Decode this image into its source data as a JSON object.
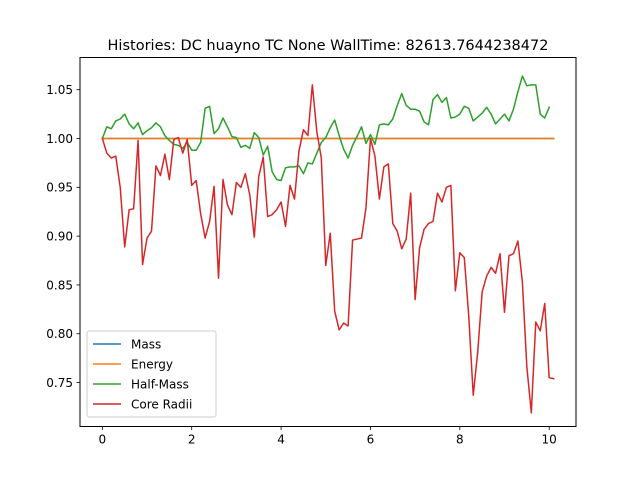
{
  "chart_data": {
    "type": "line",
    "title": "Histories: DC huayno TC None WallTime: 82613.7644238472",
    "xlabel": "",
    "ylabel": "",
    "xlim": [
      -0.5,
      10.6
    ],
    "ylim": [
      0.705,
      1.083
    ],
    "xticks": [
      0,
      2,
      4,
      6,
      8,
      10
    ],
    "xtick_labels": [
      "0",
      "2",
      "4",
      "6",
      "8",
      "10"
    ],
    "yticks": [
      0.75,
      0.8,
      0.85,
      0.9,
      0.95,
      1.0,
      1.05
    ],
    "ytick_labels": [
      "0.75",
      "0.80",
      "0.85",
      "0.90",
      "0.95",
      "1.00",
      "1.05"
    ],
    "grid": false,
    "legend_position": "lower-left",
    "x_start": 0,
    "x_step": 0.1,
    "series": [
      {
        "name": "Mass",
        "color": "#1f77b4",
        "values": [
          1.0,
          1.0,
          1.0,
          1.0,
          1.0,
          1.0,
          1.0,
          1.0,
          1.0,
          1.0,
          1.0,
          1.0,
          1.0,
          1.0,
          1.0,
          1.0,
          1.0,
          1.0,
          1.0,
          1.0,
          1.0,
          1.0,
          1.0,
          1.0,
          1.0,
          1.0,
          1.0,
          1.0,
          1.0,
          1.0,
          1.0,
          1.0,
          1.0,
          1.0,
          1.0,
          1.0,
          1.0,
          1.0,
          1.0,
          1.0,
          1.0,
          1.0,
          1.0,
          1.0,
          1.0,
          1.0,
          1.0,
          1.0,
          1.0,
          1.0,
          1.0,
          1.0,
          1.0,
          1.0,
          1.0,
          1.0,
          1.0,
          1.0,
          1.0,
          1.0,
          1.0,
          1.0,
          1.0,
          1.0,
          1.0,
          1.0,
          1.0,
          1.0,
          1.0,
          1.0,
          1.0,
          1.0,
          1.0,
          1.0,
          1.0,
          1.0,
          1.0,
          1.0,
          1.0,
          1.0,
          1.0,
          1.0,
          1.0,
          1.0,
          1.0,
          1.0,
          1.0,
          1.0,
          1.0,
          1.0,
          1.0,
          1.0,
          1.0,
          1.0,
          1.0,
          1.0,
          1.0,
          1.0,
          1.0,
          1.0,
          1.0,
          1.0
        ]
      },
      {
        "name": "Energy",
        "color": "#ff7f0e",
        "values": [
          1.0,
          1.0,
          1.0,
          1.0,
          1.0,
          1.0,
          1.0,
          1.0,
          1.0,
          1.0,
          1.0,
          1.0,
          1.0,
          1.0,
          1.0,
          1.0,
          1.0,
          1.0,
          1.0,
          1.0,
          1.0,
          1.0,
          1.0,
          1.0,
          1.0,
          1.0,
          1.0,
          1.0,
          1.0,
          1.0,
          1.0,
          1.0,
          1.0,
          1.0,
          1.0,
          1.0,
          1.0,
          1.0,
          1.0,
          1.0,
          1.0,
          1.0,
          1.0,
          1.0,
          1.0,
          1.0,
          1.0,
          1.0,
          1.0,
          1.0,
          1.0,
          1.0,
          1.0,
          1.0,
          1.0,
          1.0,
          1.0,
          1.0,
          1.0,
          1.0,
          1.0,
          1.0,
          1.0,
          1.0,
          1.0,
          1.0,
          1.0,
          1.0,
          1.0,
          1.0,
          1.0,
          1.0,
          1.0,
          1.0,
          1.0,
          1.0,
          1.0,
          1.0,
          1.0,
          1.0,
          1.0,
          1.0,
          1.0,
          1.0,
          1.0,
          1.0,
          1.0,
          1.0,
          1.0,
          1.0,
          1.0,
          1.0,
          1.0,
          1.0,
          1.0,
          1.0,
          1.0,
          1.0,
          1.0,
          1.0,
          1.0,
          1.0
        ]
      },
      {
        "name": "Half-Mass",
        "color": "#2ca02c",
        "values": [
          1.0,
          1.012,
          1.01,
          1.018,
          1.02,
          1.025,
          1.015,
          1.01,
          1.016,
          1.004,
          1.008,
          1.011,
          1.016,
          1.012,
          1.003,
          0.998,
          0.994,
          0.993,
          0.99,
          0.996,
          0.988,
          0.988,
          0.996,
          1.031,
          1.033,
          1.005,
          1.01,
          1.021,
          1.012,
          1.002,
          1.001,
          0.991,
          0.993,
          0.99,
          1.006,
          1.001,
          0.983,
          0.992,
          0.966,
          0.958,
          0.957,
          0.97,
          0.971,
          0.971,
          0.972,
          0.964,
          0.975,
          0.974,
          0.985,
          0.996,
          1.001,
          1.011,
          1.019,
          1.003,
          0.989,
          0.98,
          0.993,
          1.002,
          1.012,
          0.995,
          1.004,
          0.994,
          1.014,
          1.015,
          1.014,
          1.02,
          1.034,
          1.046,
          1.034,
          1.03,
          1.03,
          1.028,
          1.017,
          1.014,
          1.04,
          1.045,
          1.037,
          1.042,
          1.021,
          1.022,
          1.025,
          1.033,
          1.031,
          1.018,
          1.022,
          1.026,
          1.032,
          1.025,
          1.015,
          1.02,
          1.025,
          1.018,
          1.03,
          1.048,
          1.064,
          1.054,
          1.055,
          1.055,
          1.025,
          1.021,
          1.032
        ]
      },
      {
        "name": "Core Radii",
        "color": "#d62728",
        "values": [
          1.0,
          0.985,
          0.98,
          0.982,
          0.95,
          0.889,
          0.927,
          0.928,
          0.998,
          0.871,
          0.898,
          0.905,
          0.972,
          0.962,
          0.984,
          0.958,
          0.999,
          1.001,
          0.985,
          0.999,
          0.952,
          0.957,
          0.923,
          0.898,
          0.915,
          0.951,
          0.857,
          0.958,
          0.932,
          0.922,
          0.955,
          0.95,
          0.964,
          0.942,
          0.899,
          0.961,
          0.981,
          0.92,
          0.922,
          0.927,
          0.935,
          0.91,
          0.952,
          0.938,
          0.987,
          1.009,
          1.003,
          1.055,
          1.007,
          0.98,
          0.87,
          0.903,
          0.823,
          0.804,
          0.811,
          0.808,
          0.896,
          0.897,
          0.898,
          0.929,
          1.0,
          0.982,
          0.938,
          0.971,
          0.974,
          0.913,
          0.905,
          0.887,
          0.897,
          0.944,
          0.835,
          0.888,
          0.907,
          0.913,
          0.915,
          0.944,
          0.935,
          0.95,
          0.952,
          0.844,
          0.883,
          0.878,
          0.818,
          0.737,
          0.781,
          0.843,
          0.859,
          0.868,
          0.862,
          0.882,
          0.822,
          0.88,
          0.882,
          0.895,
          0.853,
          0.766,
          0.719,
          0.812,
          0.803,
          0.831,
          0.755,
          0.754
        ]
      }
    ]
  }
}
